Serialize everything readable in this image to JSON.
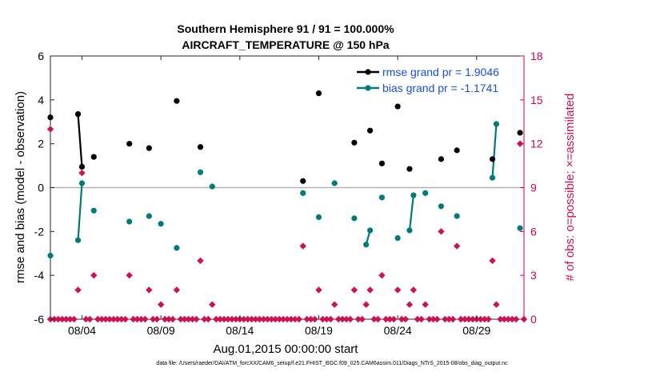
{
  "chart_data": {
    "type": "scatter",
    "title": "Southern Hemisphere 91 / 91 = 100.000%",
    "subtitle": "AIRCRAFT_TEMPERATURE @ 150 hPa",
    "xlabel": "Aug.01,2015 00:00:00 start",
    "ylabel": "rmse and bias (model - observation)",
    "y2label": "# of obs: o=possible; ×=assimilated",
    "xlim": [
      1.0,
      31.0
    ],
    "ylim": [
      -6,
      6
    ],
    "y2lim": [
      0,
      18
    ],
    "x_ticks": [
      3,
      8,
      13,
      18,
      23,
      28
    ],
    "x_tick_labels": [
      "08/04",
      "08/09",
      "08/14",
      "08/19",
      "08/24",
      "08/29"
    ],
    "y_ticks": [
      -6,
      -4,
      -2,
      0,
      2,
      4,
      6
    ],
    "y2_ticks": [
      0,
      3,
      6,
      9,
      12,
      15,
      18
    ],
    "zero_line": 0,
    "grid": false,
    "legend_position": "top-right",
    "legend": [
      {
        "label": "rmse grand pr = 1.9046",
        "color": "#000000"
      },
      {
        "label": "bias grand pr = -1.1741",
        "color": "#007a7a"
      }
    ],
    "series": [
      {
        "name": "rmse",
        "color": "#000000",
        "points": [
          [
            1.0,
            3.2
          ],
          [
            2.75,
            3.35
          ],
          [
            3.0,
            0.95
          ],
          [
            3.75,
            1.4
          ],
          [
            6.0,
            2.0
          ],
          [
            7.25,
            1.8
          ],
          [
            9.0,
            3.95
          ],
          [
            10.5,
            1.85
          ],
          [
            17.0,
            0.3
          ],
          [
            18.0,
            4.3
          ],
          [
            20.25,
            2.05
          ],
          [
            21.25,
            2.6
          ],
          [
            22.0,
            1.1
          ],
          [
            23.0,
            3.7
          ],
          [
            23.75,
            0.85
          ],
          [
            25.75,
            1.3
          ],
          [
            26.75,
            1.7
          ],
          [
            29.0,
            1.3
          ],
          [
            30.75,
            2.5
          ]
        ],
        "lines": [
          [
            [
              2.75,
              3.35
            ],
            [
              3.0,
              0.95
            ]
          ]
        ]
      },
      {
        "name": "bias",
        "color": "#007a7a",
        "points": [
          [
            1.0,
            -3.1
          ],
          [
            2.75,
            -2.4
          ],
          [
            3.0,
            0.2
          ],
          [
            3.75,
            -1.05
          ],
          [
            6.0,
            -1.55
          ],
          [
            7.25,
            -1.3
          ],
          [
            8.0,
            -1.65
          ],
          [
            9.0,
            -2.75
          ],
          [
            10.5,
            0.7
          ],
          [
            11.25,
            0.05
          ],
          [
            17.0,
            -0.25
          ],
          [
            18.0,
            -1.35
          ],
          [
            19.0,
            0.2
          ],
          [
            20.25,
            -1.4
          ],
          [
            21.0,
            -2.6
          ],
          [
            21.25,
            -1.95
          ],
          [
            22.0,
            -0.45
          ],
          [
            23.0,
            -2.3
          ],
          [
            23.75,
            -1.95
          ],
          [
            24.0,
            -0.35
          ],
          [
            24.75,
            -0.25
          ],
          [
            25.75,
            -0.85
          ],
          [
            26.75,
            -1.3
          ],
          [
            29.0,
            0.45
          ],
          [
            29.25,
            2.9
          ],
          [
            30.75,
            -1.85
          ]
        ],
        "lines": [
          [
            [
              2.75,
              -2.4
            ],
            [
              3.0,
              0.2
            ]
          ],
          [
            [
              21.0,
              -2.6
            ],
            [
              21.25,
              -1.95
            ]
          ],
          [
            [
              23.75,
              -1.95
            ],
            [
              24.0,
              -0.35
            ]
          ],
          [
            [
              29.0,
              0.45
            ],
            [
              29.25,
              2.9
            ]
          ]
        ]
      }
    ],
    "obs_possible": {
      "color": "#cc1155",
      "axis": "right",
      "points": [
        [
          1.0,
          13
        ],
        [
          2.75,
          2
        ],
        [
          3.0,
          10
        ],
        [
          3.75,
          3
        ],
        [
          6.0,
          3
        ],
        [
          7.25,
          2
        ],
        [
          8.0,
          1
        ],
        [
          9.0,
          2
        ],
        [
          10.5,
          4
        ],
        [
          11.25,
          1
        ],
        [
          17.0,
          5
        ],
        [
          18.0,
          2
        ],
        [
          19.0,
          1
        ],
        [
          20.25,
          2
        ],
        [
          21.0,
          1
        ],
        [
          21.25,
          2
        ],
        [
          22.0,
          3
        ],
        [
          23.0,
          2
        ],
        [
          23.75,
          1
        ],
        [
          24.0,
          2
        ],
        [
          24.75,
          1
        ],
        [
          25.75,
          6
        ],
        [
          26.75,
          5
        ],
        [
          29.0,
          4
        ],
        [
          29.25,
          1
        ],
        [
          30.75,
          12
        ]
      ]
    },
    "obs_zero_x": [
      1.0,
      1.25,
      1.5,
      1.75,
      2.0,
      2.25,
      2.5,
      3.25,
      3.5,
      4.0,
      4.25,
      4.5,
      4.75,
      5.0,
      5.25,
      5.5,
      5.75,
      6.25,
      6.5,
      6.75,
      7.0,
      7.5,
      7.75,
      8.25,
      8.5,
      8.75,
      9.25,
      9.5,
      9.75,
      10.0,
      10.25,
      10.75,
      11.0,
      11.5,
      11.75,
      12.0,
      12.25,
      12.5,
      12.75,
      13.0,
      13.25,
      13.5,
      13.75,
      14.0,
      14.25,
      14.5,
      14.75,
      15.0,
      15.25,
      15.5,
      15.75,
      16.0,
      16.25,
      16.5,
      16.75,
      17.25,
      17.5,
      17.75,
      18.25,
      18.5,
      18.75,
      19.25,
      19.5,
      19.75,
      20.0,
      20.5,
      20.75,
      21.5,
      21.75,
      22.25,
      22.5,
      22.75,
      23.25,
      23.5,
      24.25,
      24.5,
      25.0,
      25.25,
      25.5,
      26.0,
      26.25,
      26.5,
      27.0,
      27.25,
      27.5,
      27.75,
      28.0,
      28.25,
      28.5,
      28.75,
      29.5,
      29.75,
      30.0,
      30.25,
      30.5,
      31.0
    ]
  },
  "footer": "data file: /Users/raeder/DAI/ATM_forcXX/CAM6_setup/f.e21.FHIST_BGC.f09_025.CAM6assim.011/Diags_NTrS_2015-08/obs_diag_output.nc"
}
